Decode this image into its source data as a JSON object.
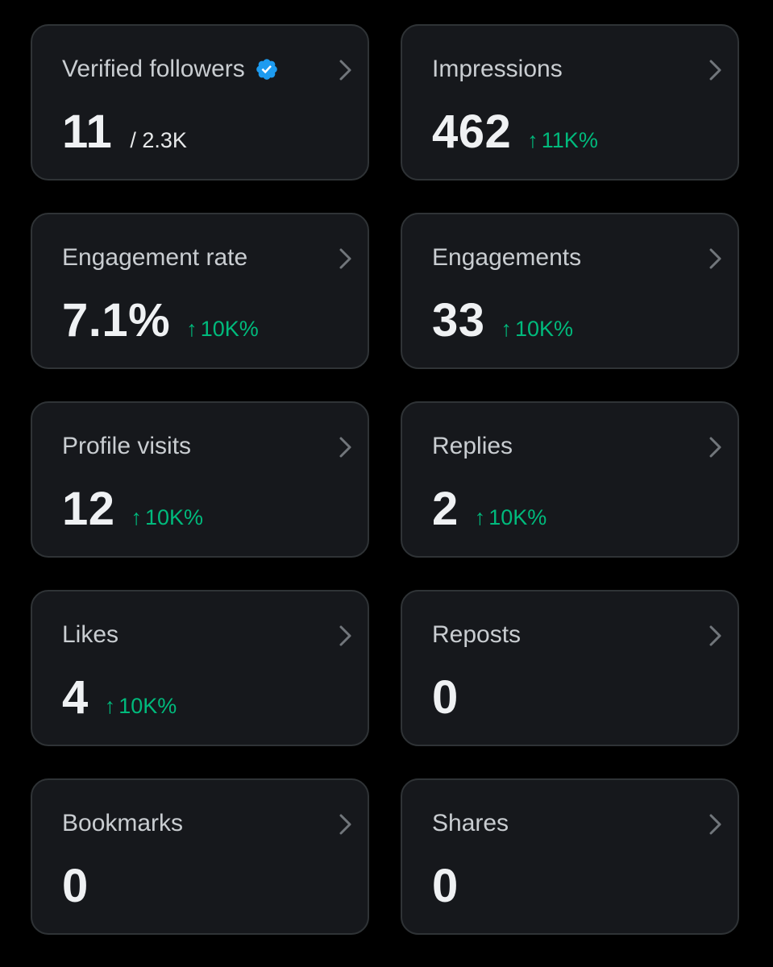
{
  "colors": {
    "background": "#000000",
    "card": "#16181c",
    "card_border": "#2f3336",
    "label": "#c9cdd1",
    "value": "#eff1f3",
    "positive": "#00ba7c",
    "verified_badge": "#1d9bf0"
  },
  "cards": [
    {
      "label": "Verified followers",
      "value": "11",
      "total": "/ 2.3K",
      "change": "",
      "verified_icon": "verified-badge-icon"
    },
    {
      "label": "Impressions",
      "value": "462",
      "change": "11K%"
    },
    {
      "label": "Engagement rate",
      "value": "7.1%",
      "change": "10K%"
    },
    {
      "label": "Engagements",
      "value": "33",
      "change": "10K%"
    },
    {
      "label": "Profile visits",
      "value": "12",
      "change": "10K%"
    },
    {
      "label": "Replies",
      "value": "2",
      "change": "10K%"
    },
    {
      "label": "Likes",
      "value": "4",
      "change": "10K%"
    },
    {
      "label": "Reposts",
      "value": "0",
      "change": ""
    },
    {
      "label": "Bookmarks",
      "value": "0",
      "change": ""
    },
    {
      "label": "Shares",
      "value": "0",
      "change": ""
    }
  ],
  "change_arrow": "↑"
}
